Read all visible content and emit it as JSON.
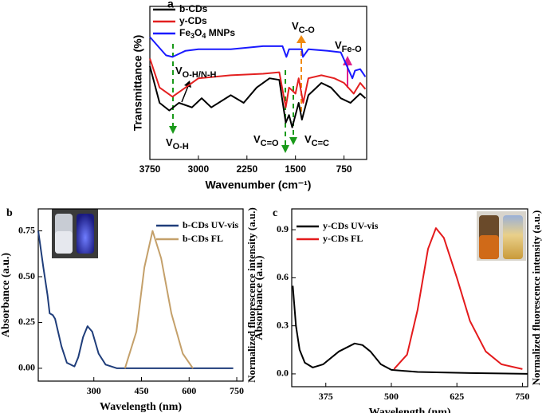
{
  "chart_data": [
    {
      "type": "line",
      "panel": "a",
      "x_label": "Wavenumber (cm⁻¹)",
      "y_label": "Transmittance (%)",
      "xlim": [
        3750,
        400
      ],
      "xticks": [
        3750,
        3000,
        2250,
        1500,
        750
      ],
      "ylim": [
        0,
        100
      ],
      "legend": "upper left",
      "series": [
        {
          "name": "b-CDs",
          "color": "#000000",
          "x": [
            3750,
            3600,
            3450,
            3300,
            3100,
            2950,
            2800,
            2500,
            2300,
            2100,
            1900,
            1750,
            1650,
            1600,
            1550,
            1450,
            1400,
            1300,
            1100,
            950,
            800,
            650,
            500,
            420
          ],
          "values": [
            61,
            37,
            32,
            37,
            34,
            40,
            34,
            42,
            37,
            47,
            53,
            52,
            24,
            29,
            21,
            37,
            26,
            42,
            50,
            47,
            40,
            37,
            43,
            40
          ]
        },
        {
          "name": "y-CDs",
          "color": "#e32020",
          "x": [
            3750,
            3600,
            3400,
            3200,
            3000,
            2500,
            2000,
            1750,
            1650,
            1600,
            1500,
            1450,
            1380,
            1300,
            1100,
            900,
            750,
            600,
            500,
            420
          ],
          "values": [
            66,
            47,
            41,
            47,
            53,
            55,
            56,
            57,
            34,
            47,
            43,
            53,
            37,
            53,
            55,
            53,
            50,
            43,
            50,
            46
          ]
        },
        {
          "name": "Fe3O4 MNPs",
          "color": "#1a1aff",
          "x": [
            3750,
            3500,
            3400,
            3200,
            3000,
            2500,
            2000,
            1700,
            1640,
            1600,
            1400,
            1385,
            1300,
            1000,
            800,
            620,
            580,
            500,
            420
          ],
          "values": [
            80,
            68,
            67,
            71,
            72,
            72,
            74,
            74,
            67,
            72,
            72,
            67,
            72,
            71,
            70,
            53,
            58,
            59,
            54
          ]
        }
      ],
      "annotations": [
        {
          "text": "V",
          "sub": "O-H"
        },
        {
          "text": "V",
          "sub": "O-H/N-H"
        },
        {
          "text": "V",
          "sub": "C=O"
        },
        {
          "text": "V",
          "sub": "C=C"
        },
        {
          "text": "V",
          "sub": "C-O"
        },
        {
          "text": "V",
          "sub": "Fe-O"
        }
      ]
    },
    {
      "type": "line",
      "panel": "b",
      "x_label": "Wavelength (nm)",
      "y_label": "Absorbance (a.u.)",
      "y2_label": "Normalized fluorescence intensity (a.u.)",
      "xlim": [
        125,
        770
      ],
      "xticks": [
        300,
        450,
        600,
        750
      ],
      "ylim": [
        -0.07,
        0.87
      ],
      "yticks": [
        {
          "value": 0,
          "label": "0.00"
        },
        {
          "value": 0.25,
          "label": "0.25"
        },
        {
          "value": 0.5,
          "label": "0.50"
        },
        {
          "value": 0.75,
          "label": "0.75"
        }
      ],
      "legend": "upper right",
      "series": [
        {
          "name": "b-CDs UV-vis",
          "color": "#1f3d7a",
          "x": [
            125,
            141,
            154,
            161,
            171,
            178,
            198,
            215,
            239,
            251,
            266,
            280,
            295,
            315,
            337,
            373,
            495,
            739
          ],
          "values": [
            0.75,
            0.55,
            0.4,
            0.3,
            0.29,
            0.27,
            0.12,
            0.03,
            0.01,
            0.06,
            0.17,
            0.23,
            0.2,
            0.08,
            0.02,
            0,
            0,
            0
          ]
        },
        {
          "name": "b-CDs FL",
          "color": "#c4a06a",
          "x": [
            398,
            434,
            459,
            485,
            512,
            544,
            580,
            612
          ],
          "values": [
            0,
            0.2,
            0.55,
            0.75,
            0.6,
            0.3,
            0.08,
            0
          ]
        }
      ]
    },
    {
      "type": "line",
      "panel": "c",
      "x_label": "Wavelength (nm)",
      "y_label": "Absorbance (a.u.)",
      "y2_label": "Normalized fluorescence intensity (a.u.)",
      "xlim": [
        310,
        760
      ],
      "xticks": [
        375,
        500,
        625,
        750
      ],
      "ylim": [
        -0.08,
        1.03
      ],
      "yticks": [
        {
          "value": 0,
          "label": "0.0"
        },
        {
          "value": 0.3,
          "label": "0.3"
        },
        {
          "value": 0.6,
          "label": "0.6"
        },
        {
          "value": 0.9,
          "label": "0.9"
        }
      ],
      "legend": "upper left",
      "series": [
        {
          "name": "y-CDs UV-vis",
          "color": "#000000",
          "x": [
            312,
            318,
            325,
            335,
            350,
            370,
            400,
            430,
            445,
            460,
            480,
            500,
            550,
            650,
            760
          ],
          "values": [
            0.55,
            0.3,
            0.15,
            0.07,
            0.04,
            0.06,
            0.14,
            0.19,
            0.18,
            0.14,
            0.06,
            0.025,
            0.012,
            0.005,
            0
          ]
        },
        {
          "name": "y-CDs FL",
          "color": "#e41a1c",
          "x": [
            505,
            530,
            550,
            570,
            585,
            600,
            625,
            650,
            680,
            710,
            750
          ],
          "values": [
            0.03,
            0.12,
            0.4,
            0.78,
            0.91,
            0.85,
            0.6,
            0.33,
            0.14,
            0.06,
            0.03
          ]
        }
      ]
    }
  ]
}
